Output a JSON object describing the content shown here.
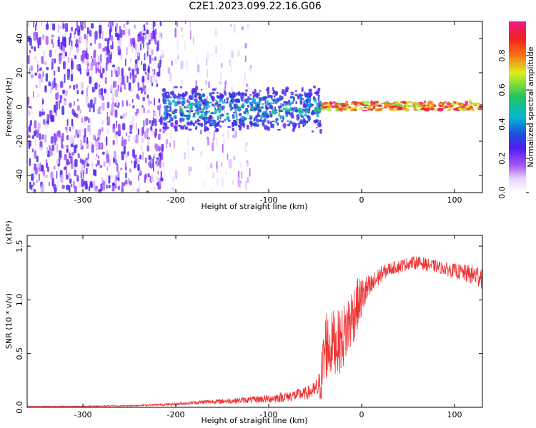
{
  "title": "C2E1.2023.099.22.16.G06",
  "chart_data": [
    {
      "type": "heatmap",
      "title": "C2E1.2023.099.22.16.G06",
      "xlabel": "Height of straight line (km)",
      "ylabel": "Frequency (Hz)",
      "xlim": [
        -360,
        130
      ],
      "ylim": [
        -50,
        50
      ],
      "xticks": [
        -300,
        -200,
        -100,
        0,
        100
      ],
      "yticks": [
        -40,
        -20,
        0,
        20,
        40
      ],
      "colorbar": {
        "label": "Normalized spectral amplitude",
        "range": [
          0.0,
          1.0
        ],
        "ticks": [
          0.0,
          0.2,
          0.4,
          0.6,
          0.8
        ],
        "colors": [
          "#ffffff",
          "#d8b4fe",
          "#7c3aed",
          "#1d4ed8",
          "#06b6d4",
          "#22c55e",
          "#facc15",
          "#f97316",
          "#ef4444",
          "#ec4899"
        ]
      },
      "regions": [
        {
          "x": [
            -360,
            -215
          ],
          "f": [
            -50,
            50
          ],
          "amplitude": 0.15,
          "pattern": "noise"
        },
        {
          "x": [
            -215,
            -120
          ],
          "f": [
            -50,
            50
          ],
          "amplitude": 0.05,
          "pattern": "sparse noise"
        },
        {
          "x": [
            -215,
            -45
          ],
          "f": [
            -15,
            12
          ],
          "amplitude": 0.35,
          "pattern": "signal band"
        },
        {
          "x": [
            -45,
            130
          ],
          "f": [
            -2,
            3
          ],
          "amplitude": 0.95,
          "pattern": "carrier line"
        }
      ]
    },
    {
      "type": "line",
      "xlabel": "Height of straight line (km)",
      "ylabel": "SNR (10 * v/v)",
      "y_multiplier": "(x10⁴)",
      "xlim": [
        -360,
        130
      ],
      "ylim": [
        0,
        1.6
      ],
      "xticks": [
        -300,
        -200,
        -100,
        0,
        100
      ],
      "yticks": [
        0.0,
        0.5,
        1.0,
        1.5
      ],
      "ytick_labels": [
        "0.0",
        "0.5",
        "1.0",
        "1.5"
      ],
      "series": [
        {
          "color": "#ee3333",
          "x": [
            -360,
            -300,
            -250,
            -200,
            -170,
            -140,
            -120,
            -100,
            -80,
            -60,
            -50,
            -45,
            -42,
            -40,
            -38,
            -35,
            -32,
            -30,
            -25,
            -20,
            -15,
            -10,
            -5,
            0,
            5,
            10,
            15,
            20,
            30,
            40,
            50,
            60,
            70,
            80,
            90,
            100,
            110,
            120,
            130
          ],
          "y": [
            0.01,
            0.01,
            0.015,
            0.03,
            0.05,
            0.06,
            0.07,
            0.08,
            0.1,
            0.13,
            0.16,
            0.2,
            0.35,
            0.5,
            0.6,
            0.55,
            0.6,
            0.62,
            0.6,
            0.65,
            0.75,
            0.85,
            0.95,
            1.02,
            1.08,
            1.12,
            1.18,
            1.23,
            1.29,
            1.31,
            1.34,
            1.35,
            1.33,
            1.31,
            1.29,
            1.27,
            1.25,
            1.23,
            1.22
          ],
          "noise": [
            0.002,
            0.004,
            0.006,
            0.012,
            0.02,
            0.025,
            0.03,
            0.04,
            0.05,
            0.06,
            0.08,
            0.15,
            0.3,
            0.35,
            0.35,
            0.3,
            0.3,
            0.3,
            0.3,
            0.3,
            0.3,
            0.3,
            0.25,
            0.2,
            0.15,
            0.12,
            0.1,
            0.08,
            0.06,
            0.06,
            0.06,
            0.06,
            0.06,
            0.06,
            0.06,
            0.07,
            0.08,
            0.1,
            0.12
          ]
        }
      ]
    }
  ]
}
